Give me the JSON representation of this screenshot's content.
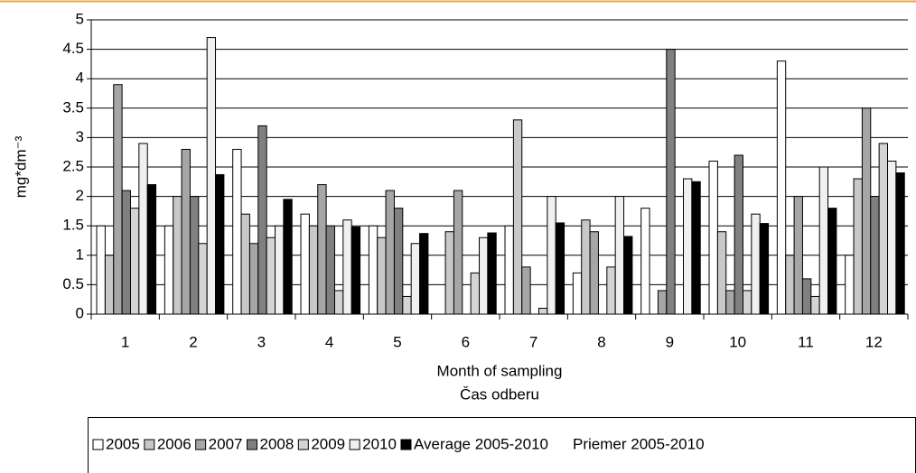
{
  "chart_data": {
    "type": "bar",
    "ylabel": "mg*dm⁻³",
    "xlabel": [
      "Month of sampling",
      "Čas odberu"
    ],
    "categories": [
      "1",
      "2",
      "3",
      "4",
      "5",
      "6",
      "7",
      "8",
      "9",
      "10",
      "11",
      "12"
    ],
    "series": [
      {
        "name": "2005",
        "color": "#ffffff",
        "values": [
          1.5,
          1.5,
          2.8,
          1.7,
          1.5,
          null,
          1.5,
          0.7,
          1.8,
          2.6,
          4.3,
          1.0
        ]
      },
      {
        "name": "2006",
        "color": "#c8c8c8",
        "values": [
          1.0,
          2.0,
          1.7,
          1.5,
          1.3,
          1.4,
          3.3,
          1.6,
          null,
          1.4,
          1.0,
          2.3
        ]
      },
      {
        "name": "2007",
        "color": "#a6a6a6",
        "values": [
          3.9,
          2.8,
          1.2,
          2.2,
          2.1,
          2.1,
          0.8,
          1.4,
          0.4,
          0.4,
          2.0,
          3.5
        ]
      },
      {
        "name": "2008",
        "color": "#808080",
        "values": [
          2.1,
          2.0,
          3.2,
          1.5,
          1.8,
          null,
          null,
          null,
          4.5,
          2.7,
          0.6,
          2.0
        ]
      },
      {
        "name": "2009",
        "color": "#d4d4d4",
        "values": [
          1.8,
          1.2,
          1.3,
          0.4,
          0.3,
          0.7,
          0.1,
          0.8,
          null,
          0.4,
          0.3,
          2.9
        ]
      },
      {
        "name": "2010",
        "color": "#f0f0f0",
        "values": [
          2.9,
          4.7,
          1.5,
          1.6,
          1.2,
          1.3,
          2.0,
          2.0,
          2.3,
          1.7,
          2.5,
          2.6
        ]
      },
      {
        "name": "Average 2005-2010",
        "color": "#000000",
        "values": [
          2.2,
          2.37,
          1.95,
          1.48,
          1.37,
          1.38,
          1.55,
          1.32,
          2.25,
          1.54,
          1.8,
          2.4
        ]
      }
    ],
    "legend_note": "Priemer 2005-2010",
    "ylim": [
      0,
      5
    ],
    "yticks": [
      0,
      0.5,
      1,
      1.5,
      2,
      2.5,
      3,
      3.5,
      4,
      4.5,
      5
    ],
    "grid": true
  }
}
